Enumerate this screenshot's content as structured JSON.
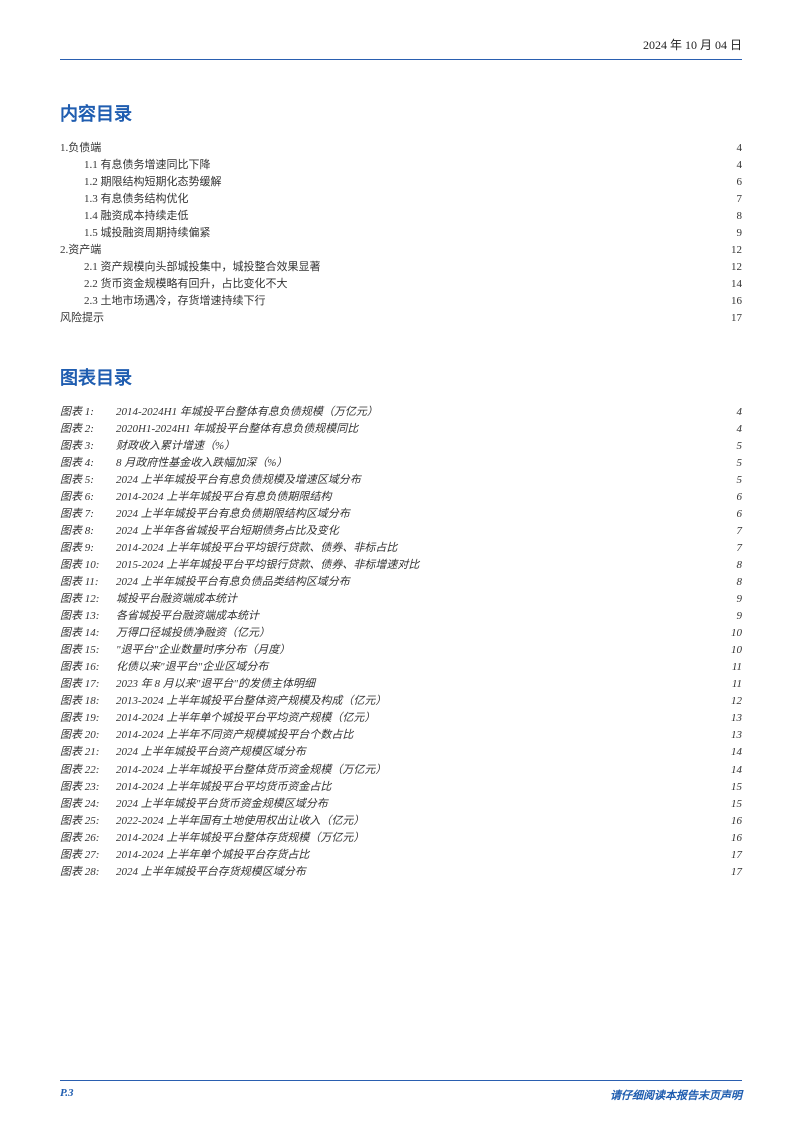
{
  "colors": {
    "accent": "#1f5db0",
    "rule": "#2a5fb0",
    "text": "#333333",
    "background": "#ffffff"
  },
  "typography": {
    "body_fontsize_pt": 8,
    "heading_fontsize_pt": 14,
    "line_height": 1.55
  },
  "header": {
    "date": "2024 年 10 月 04 日"
  },
  "toc": {
    "title": "内容目录",
    "items": [
      {
        "level": 1,
        "label": "1.负债端",
        "page": "4"
      },
      {
        "level": 2,
        "label": "1.1 有息债务增速同比下降",
        "page": "4"
      },
      {
        "level": 2,
        "label": "1.2 期限结构短期化态势缓解",
        "page": "6"
      },
      {
        "level": 2,
        "label": "1.3 有息债务结构优化",
        "page": "7"
      },
      {
        "level": 2,
        "label": "1.4 融资成本持续走低",
        "page": "8"
      },
      {
        "level": 2,
        "label": "1.5 城投融资周期持续偏紧",
        "page": "9"
      },
      {
        "level": 1,
        "label": "2.资产端",
        "page": "12"
      },
      {
        "level": 2,
        "label": "2.1 资产规模向头部城投集中，城投整合效果显著",
        "page": "12"
      },
      {
        "level": 2,
        "label": "2.2 货币资金规模略有回升，占比变化不大",
        "page": "14"
      },
      {
        "level": 2,
        "label": "2.3 土地市场遇冷，存货增速持续下行",
        "page": "16"
      },
      {
        "level": 0,
        "label": "风险提示",
        "page": "17"
      }
    ]
  },
  "figures": {
    "title": "图表目录",
    "prefix": "图表",
    "items": [
      {
        "num": "1:",
        "title": "2014-2024H1 年城投平台整体有息负债规模（万亿元）",
        "page": "4"
      },
      {
        "num": "2:",
        "title": "2020H1-2024H1 年城投平台整体有息负债规模同比",
        "page": "4"
      },
      {
        "num": "3:",
        "title": "财政收入累计增速（%）",
        "page": "5"
      },
      {
        "num": "4:",
        "title": "8 月政府性基金收入跌幅加深（%）",
        "page": "5"
      },
      {
        "num": "5:",
        "title": "2024 上半年城投平台有息负债规模及增速区域分布",
        "page": "5"
      },
      {
        "num": "6:",
        "title": "2014-2024 上半年城投平台有息负债期限结构",
        "page": "6"
      },
      {
        "num": "7:",
        "title": "2024 上半年城投平台有息负债期限结构区域分布",
        "page": "6"
      },
      {
        "num": "8:",
        "title": "2024 上半年各省城投平台短期债务占比及变化",
        "page": "7"
      },
      {
        "num": "9:",
        "title": "2014-2024 上半年城投平台平均银行贷款、债券、非标占比",
        "page": "7"
      },
      {
        "num": "10:",
        "title": "2015-2024 上半年城投平台平均银行贷款、债券、非标增速对比",
        "page": "8"
      },
      {
        "num": "11:",
        "title": "2024 上半年城投平台有息负债品类结构区域分布",
        "page": "8"
      },
      {
        "num": "12:",
        "title": "城投平台融资端成本统计",
        "page": "9"
      },
      {
        "num": "13:",
        "title": "各省城投平台融资端成本统计",
        "page": "9"
      },
      {
        "num": "14:",
        "title": "万得口径城投债净融资（亿元）",
        "page": "10"
      },
      {
        "num": "15:",
        "title": "\"退平台\"企业数量时序分布（月度）",
        "page": "10"
      },
      {
        "num": "16:",
        "title": "化债以来\"退平台\"企业区域分布",
        "page": "11"
      },
      {
        "num": "17:",
        "title": "2023 年 8 月以来\"退平台\"的发债主体明细",
        "page": "11"
      },
      {
        "num": "18:",
        "title": "2013-2024 上半年城投平台整体资产规模及构成（亿元）",
        "page": "12"
      },
      {
        "num": "19:",
        "title": "2014-2024 上半年单个城投平台平均资产规模（亿元）",
        "page": "13"
      },
      {
        "num": "20:",
        "title": "2014-2024 上半年不同资产规模城投平台个数占比",
        "page": "13"
      },
      {
        "num": "21:",
        "title": "2024 上半年城投平台资产规模区域分布",
        "page": "14"
      },
      {
        "num": "22:",
        "title": "2014-2024 上半年城投平台整体货币资金规模（万亿元）",
        "page": "14"
      },
      {
        "num": "23:",
        "title": "2014-2024 上半年城投平台平均货币资金占比",
        "page": "15"
      },
      {
        "num": "24:",
        "title": "2024 上半年城投平台货币资金规模区域分布",
        "page": "15"
      },
      {
        "num": "25:",
        "title": "2022-2024 上半年国有土地使用权出让收入（亿元）",
        "page": "16"
      },
      {
        "num": "26:",
        "title": "2014-2024 上半年城投平台整体存货规模（万亿元）",
        "page": "16"
      },
      {
        "num": "27:",
        "title": "2014-2024 上半年单个城投平台存货占比",
        "page": "17"
      },
      {
        "num": "28:",
        "title": "2024 上半年城投平台存货规模区域分布",
        "page": "17"
      }
    ]
  },
  "footer": {
    "page_label": "P.3",
    "notice": "请仔细阅读本报告末页声明"
  }
}
